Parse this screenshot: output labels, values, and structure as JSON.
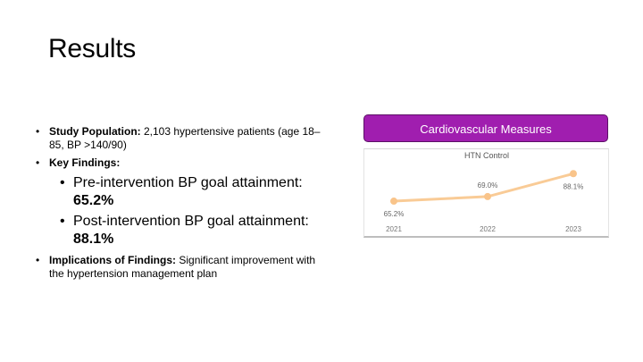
{
  "slide": {
    "title": "Results"
  },
  "bullets": {
    "study_population": {
      "label": "Study Population:",
      "text": "2,103 hypertensive patients (age 18–85, BP >140/90)"
    },
    "key_findings": {
      "label": "Key Findings:",
      "items": [
        {
          "text": "Pre-intervention BP goal attainment: ",
          "value": "65.2%"
        },
        {
          "text": "Post-intervention BP goal attainment: ",
          "value": "88.1%"
        }
      ]
    },
    "implications": {
      "label": "Implications of Findings:",
      "text": "Significant improvement with the hypertension management plan"
    }
  },
  "chart_header": {
    "label": "Cardiovascular Measures"
  },
  "chart_data": {
    "type": "line",
    "title": "HTN Control",
    "categories": [
      "2021",
      "2022",
      "2023"
    ],
    "series": [
      {
        "values": [
          65.2,
          69.0,
          88.1
        ],
        "labels": [
          "65.2%",
          "69.0%",
          "88.1%"
        ]
      }
    ],
    "line_color": "#f9cb96",
    "marker_color": "#f9c48a",
    "grid": false
  }
}
